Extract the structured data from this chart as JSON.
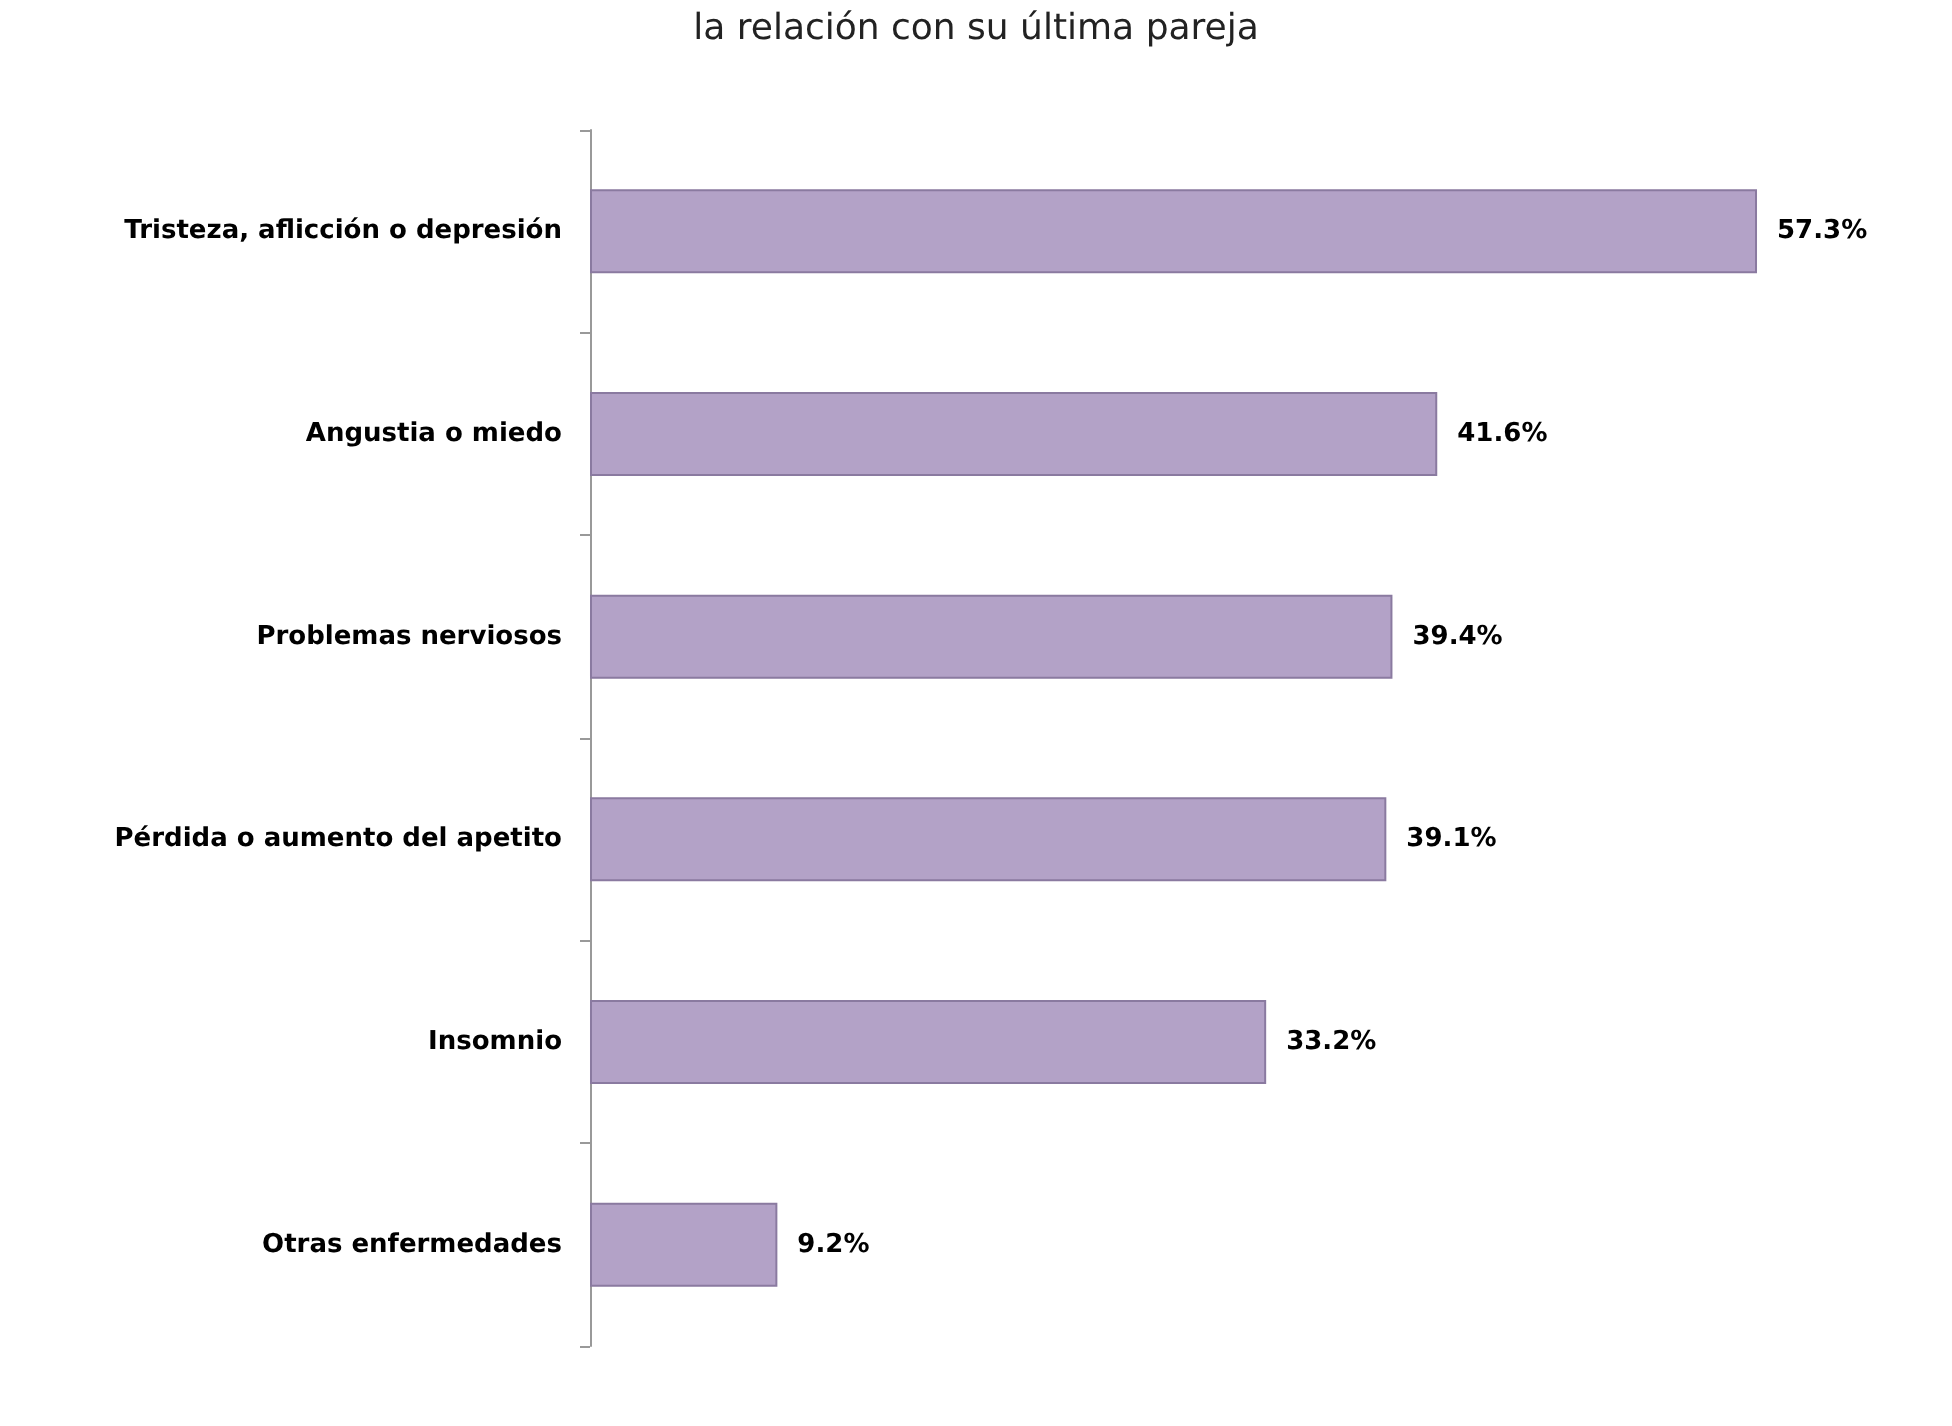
{
  "chart_data": {
    "type": "bar",
    "orientation": "horizontal",
    "title": "la relación con su última pareja",
    "categories": [
      "Tristeza, aflicción o depresión",
      "Angustia o miedo",
      "Problemas nerviosos",
      "Pérdida o aumento del apetito",
      "Insomnio",
      "Otras enfermedades"
    ],
    "values": [
      57.3,
      41.6,
      39.4,
      39.1,
      33.2,
      9.2
    ],
    "color": "#b3a2c7",
    "value_labels": [
      "57.3%",
      "41.6%",
      "39.4%",
      "39.1%",
      "33.2%",
      "9.2%"
    ]
  }
}
